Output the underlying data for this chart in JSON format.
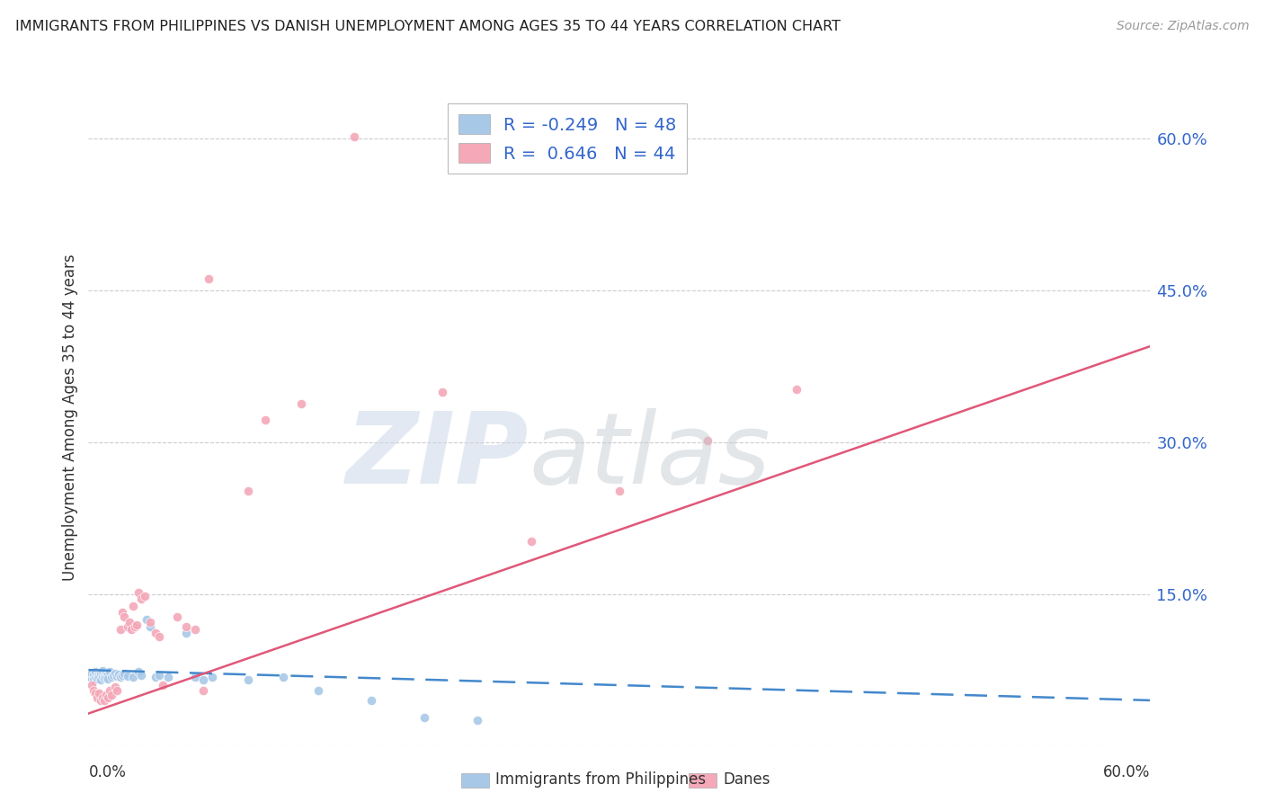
{
  "title": "IMMIGRANTS FROM PHILIPPINES VS DANISH UNEMPLOYMENT AMONG AGES 35 TO 44 YEARS CORRELATION CHART",
  "source": "Source: ZipAtlas.com",
  "ylabel": "Unemployment Among Ages 35 to 44 years",
  "xlim": [
    0.0,
    0.6
  ],
  "ylim": [
    0.0,
    0.65
  ],
  "ytick_vals": [
    0.0,
    0.15,
    0.3,
    0.45,
    0.6
  ],
  "ytick_labels": [
    "",
    "15.0%",
    "30.0%",
    "45.0%",
    "60.0%"
  ],
  "legend_label_color": "#3366cc",
  "philippine_color": "#a8c8e8",
  "dane_color": "#f4a8b8",
  "philippine_line_color": "#4488cc",
  "dane_line_color": "#e05878",
  "background_color": "#ffffff",
  "grid_color": "#cccccc",
  "title_color": "#222222",
  "philippine_R": -0.249,
  "dane_R": 0.646,
  "philippine_N": 48,
  "dane_N": 44,
  "philippine_points": [
    [
      0.001,
      0.068
    ],
    [
      0.002,
      0.072
    ],
    [
      0.003,
      0.07
    ],
    [
      0.003,
      0.065
    ],
    [
      0.004,
      0.068
    ],
    [
      0.004,
      0.073
    ],
    [
      0.005,
      0.07
    ],
    [
      0.005,
      0.066
    ],
    [
      0.006,
      0.071
    ],
    [
      0.006,
      0.068
    ],
    [
      0.007,
      0.072
    ],
    [
      0.007,
      0.065
    ],
    [
      0.008,
      0.069
    ],
    [
      0.008,
      0.074
    ],
    [
      0.009,
      0.07
    ],
    [
      0.009,
      0.067
    ],
    [
      0.01,
      0.072
    ],
    [
      0.01,
      0.068
    ],
    [
      0.011,
      0.071
    ],
    [
      0.011,
      0.066
    ],
    [
      0.012,
      0.073
    ],
    [
      0.013,
      0.068
    ],
    [
      0.014,
      0.07
    ],
    [
      0.015,
      0.072
    ],
    [
      0.016,
      0.069
    ],
    [
      0.017,
      0.071
    ],
    [
      0.018,
      0.068
    ],
    [
      0.019,
      0.07
    ],
    [
      0.02,
      0.072
    ],
    [
      0.022,
      0.069
    ],
    [
      0.025,
      0.068
    ],
    [
      0.028,
      0.073
    ],
    [
      0.03,
      0.07
    ],
    [
      0.033,
      0.125
    ],
    [
      0.035,
      0.118
    ],
    [
      0.038,
      0.068
    ],
    [
      0.04,
      0.07
    ],
    [
      0.045,
      0.068
    ],
    [
      0.055,
      0.112
    ],
    [
      0.06,
      0.068
    ],
    [
      0.065,
      0.065
    ],
    [
      0.07,
      0.068
    ],
    [
      0.09,
      0.065
    ],
    [
      0.11,
      0.068
    ],
    [
      0.13,
      0.055
    ],
    [
      0.16,
      0.045
    ],
    [
      0.19,
      0.028
    ],
    [
      0.22,
      0.025
    ]
  ],
  "dane_points": [
    [
      0.002,
      0.06
    ],
    [
      0.003,
      0.055
    ],
    [
      0.004,
      0.052
    ],
    [
      0.005,
      0.048
    ],
    [
      0.006,
      0.052
    ],
    [
      0.007,
      0.045
    ],
    [
      0.008,
      0.048
    ],
    [
      0.009,
      0.045
    ],
    [
      0.01,
      0.05
    ],
    [
      0.011,
      0.048
    ],
    [
      0.012,
      0.055
    ],
    [
      0.013,
      0.05
    ],
    [
      0.015,
      0.058
    ],
    [
      0.016,
      0.055
    ],
    [
      0.018,
      0.115
    ],
    [
      0.019,
      0.132
    ],
    [
      0.02,
      0.128
    ],
    [
      0.022,
      0.118
    ],
    [
      0.023,
      0.122
    ],
    [
      0.024,
      0.115
    ],
    [
      0.025,
      0.138
    ],
    [
      0.026,
      0.118
    ],
    [
      0.027,
      0.12
    ],
    [
      0.028,
      0.152
    ],
    [
      0.03,
      0.145
    ],
    [
      0.032,
      0.148
    ],
    [
      0.035,
      0.122
    ],
    [
      0.038,
      0.112
    ],
    [
      0.04,
      0.108
    ],
    [
      0.042,
      0.06
    ],
    [
      0.05,
      0.128
    ],
    [
      0.055,
      0.118
    ],
    [
      0.06,
      0.115
    ],
    [
      0.065,
      0.055
    ],
    [
      0.068,
      0.462
    ],
    [
      0.09,
      0.252
    ],
    [
      0.1,
      0.322
    ],
    [
      0.12,
      0.338
    ],
    [
      0.15,
      0.602
    ],
    [
      0.2,
      0.35
    ],
    [
      0.25,
      0.202
    ],
    [
      0.3,
      0.252
    ],
    [
      0.35,
      0.302
    ],
    [
      0.4,
      0.352
    ]
  ],
  "phil_line_x": [
    0.0,
    0.6
  ],
  "phil_line_y": [
    0.075,
    0.045
  ],
  "dane_line_x": [
    0.0,
    0.6
  ],
  "dane_line_y": [
    0.032,
    0.395
  ]
}
